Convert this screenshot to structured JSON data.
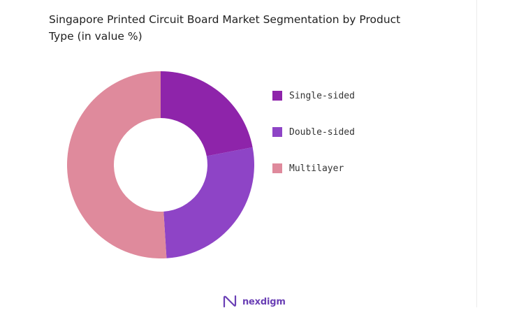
{
  "title": {
    "line1": "Singapore Printed Circuit Board Market Segmentation by Product",
    "line2": "Type (in value %)"
  },
  "chart_data": {
    "type": "pie",
    "variant": "donut",
    "title": "Singapore Printed Circuit Board Market Segmentation by Product Type (in value %)",
    "legend_position": "right",
    "categories": [
      "Single-sided",
      "Double-sided",
      "Multilayer"
    ],
    "values": [
      22,
      27,
      51
    ],
    "colors": [
      "#8e24aa",
      "#8e44c6",
      "#df8a9c"
    ]
  },
  "brand": {
    "name": "nexdigm",
    "logo_icon": "nexdigm-logo-icon"
  }
}
